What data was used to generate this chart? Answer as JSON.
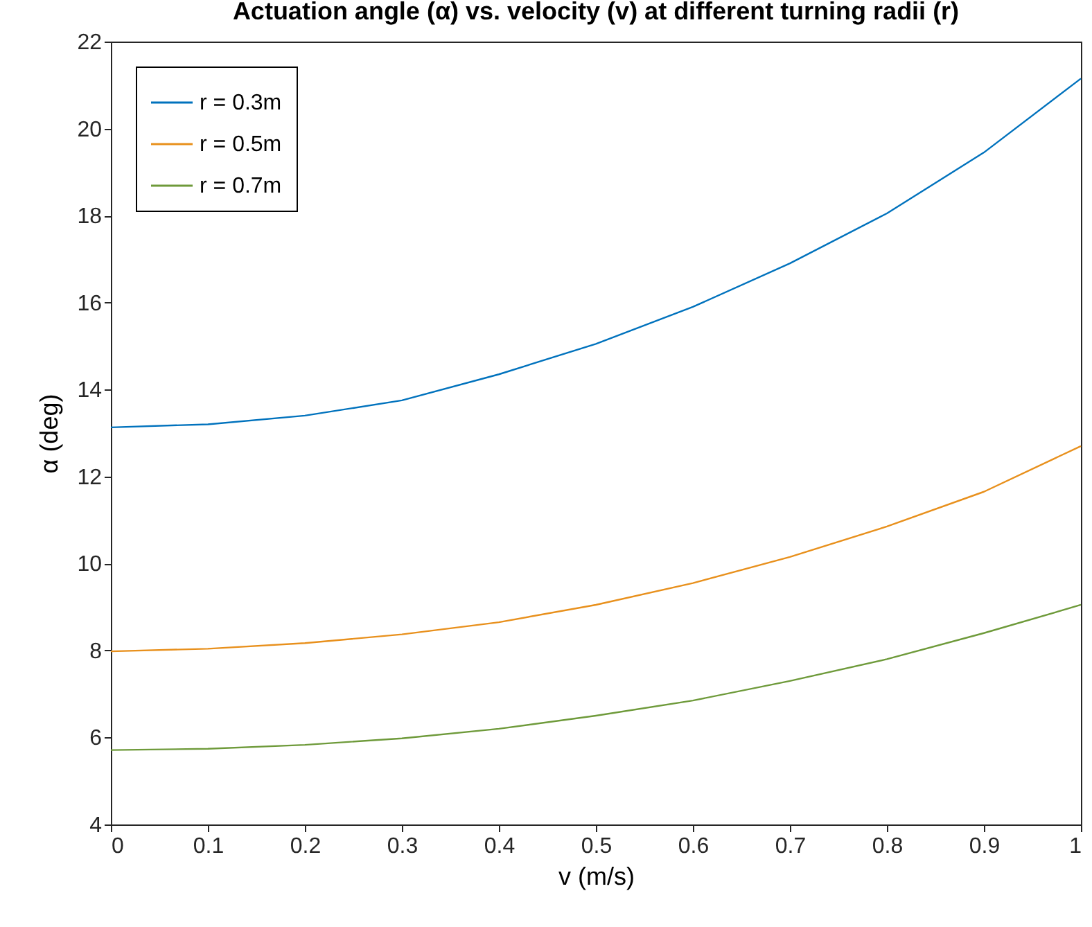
{
  "chart_data": {
    "type": "line",
    "title": "Actuation angle (α) vs. velocity (v) at different turning radii (r)",
    "xlabel": "v (m/s)",
    "ylabel": "α (deg)",
    "x": [
      0,
      0.1,
      0.2,
      0.3,
      0.4,
      0.5,
      0.6,
      0.7,
      0.8,
      0.9,
      1
    ],
    "series": [
      {
        "name": "r = 0.3m",
        "color": "#0072bd",
        "values": [
          13.13,
          13.2,
          13.4,
          13.75,
          14.35,
          15.05,
          15.9,
          16.9,
          18.05,
          19.45,
          21.15
        ]
      },
      {
        "name": "r = 0.5m",
        "color": "#e8901c",
        "values": [
          7.98,
          8.04,
          8.17,
          8.37,
          8.65,
          9.05,
          9.55,
          10.15,
          10.85,
          11.65,
          12.7
        ]
      },
      {
        "name": "r = 0.7m",
        "color": "#6e9a3a",
        "values": [
          5.71,
          5.74,
          5.83,
          5.98,
          6.2,
          6.5,
          6.85,
          7.3,
          7.8,
          8.4,
          9.05
        ]
      }
    ],
    "xlim": [
      0,
      1
    ],
    "xticks": [
      0,
      0.1,
      0.2,
      0.3,
      0.4,
      0.5,
      0.6,
      0.7,
      0.8,
      0.9,
      1
    ],
    "ylim": [
      4,
      22
    ],
    "yticks": [
      4,
      6,
      8,
      10,
      12,
      14,
      16,
      18,
      20,
      22
    ],
    "grid": false,
    "legend": "top left",
    "marker": "none",
    "line_style": "solid"
  }
}
